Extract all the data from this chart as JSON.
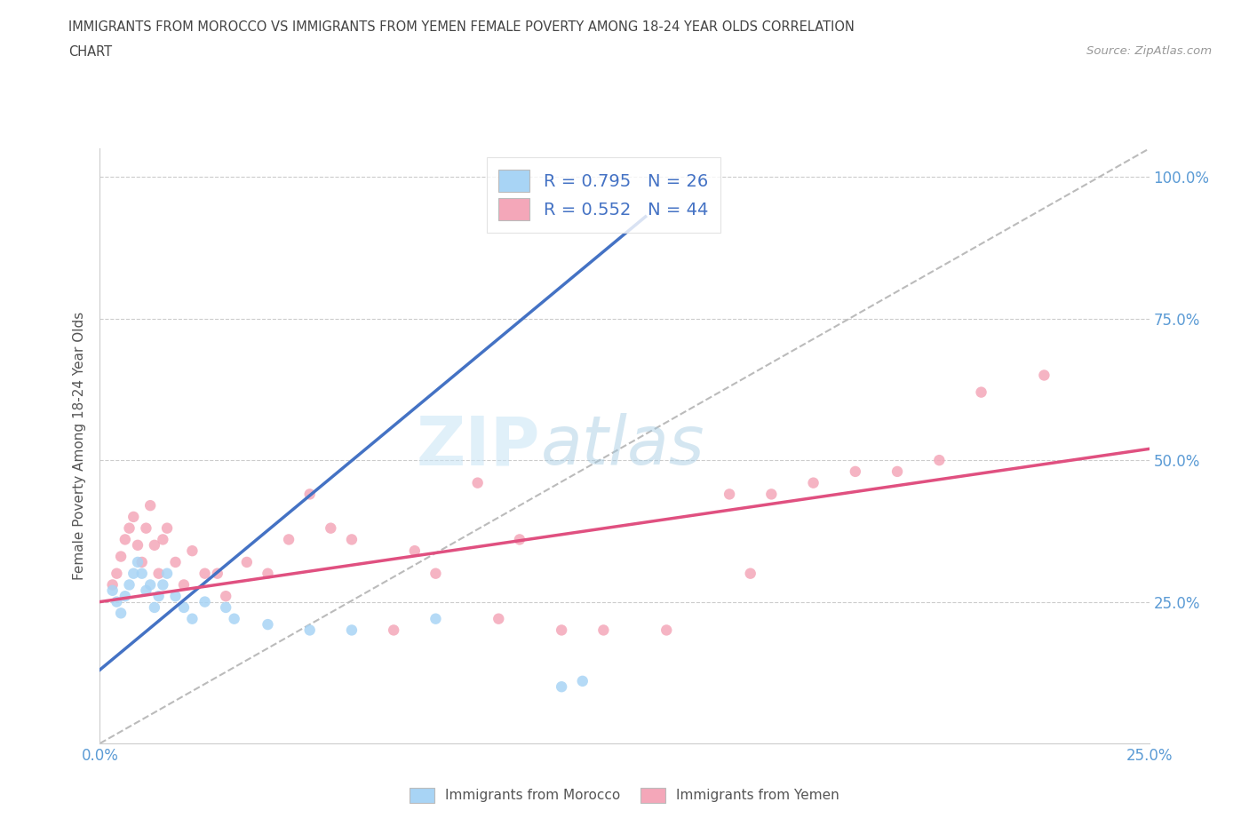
{
  "title_line1": "IMMIGRANTS FROM MOROCCO VS IMMIGRANTS FROM YEMEN FEMALE POVERTY AMONG 18-24 YEAR OLDS CORRELATION",
  "title_line2": "CHART",
  "source": "Source: ZipAtlas.com",
  "ylabel": "Female Poverty Among 18-24 Year Olds",
  "xlim": [
    0.0,
    0.25
  ],
  "ylim": [
    0.0,
    1.05
  ],
  "r_morocco": 0.795,
  "n_morocco": 26,
  "r_yemen": 0.552,
  "n_yemen": 44,
  "morocco_color": "#A8D4F5",
  "yemen_color": "#F4A7B9",
  "morocco_line_color": "#4472C4",
  "yemen_line_color": "#E05080",
  "diag_line_color": "#BBBBBB",
  "background_color": "#FFFFFF",
  "morocco_scatter_x": [
    0.003,
    0.004,
    0.005,
    0.006,
    0.007,
    0.008,
    0.009,
    0.01,
    0.011,
    0.012,
    0.013,
    0.014,
    0.015,
    0.016,
    0.018,
    0.02,
    0.022,
    0.025,
    0.03,
    0.032,
    0.04,
    0.05,
    0.06,
    0.08,
    0.11,
    0.115
  ],
  "morocco_scatter_y": [
    0.27,
    0.25,
    0.23,
    0.26,
    0.28,
    0.3,
    0.32,
    0.3,
    0.27,
    0.28,
    0.24,
    0.26,
    0.28,
    0.3,
    0.26,
    0.24,
    0.22,
    0.25,
    0.24,
    0.22,
    0.21,
    0.2,
    0.2,
    0.22,
    0.1,
    0.11
  ],
  "yemen_scatter_x": [
    0.003,
    0.004,
    0.005,
    0.006,
    0.007,
    0.008,
    0.009,
    0.01,
    0.011,
    0.012,
    0.013,
    0.014,
    0.015,
    0.016,
    0.018,
    0.02,
    0.022,
    0.025,
    0.028,
    0.03,
    0.035,
    0.04,
    0.045,
    0.05,
    0.055,
    0.06,
    0.07,
    0.075,
    0.08,
    0.09,
    0.095,
    0.1,
    0.11,
    0.12,
    0.135,
    0.15,
    0.155,
    0.16,
    0.17,
    0.18,
    0.19,
    0.2,
    0.21,
    0.225
  ],
  "yemen_scatter_y": [
    0.28,
    0.3,
    0.33,
    0.36,
    0.38,
    0.4,
    0.35,
    0.32,
    0.38,
    0.42,
    0.35,
    0.3,
    0.36,
    0.38,
    0.32,
    0.28,
    0.34,
    0.3,
    0.3,
    0.26,
    0.32,
    0.3,
    0.36,
    0.44,
    0.38,
    0.36,
    0.2,
    0.34,
    0.3,
    0.46,
    0.22,
    0.36,
    0.2,
    0.2,
    0.2,
    0.44,
    0.3,
    0.44,
    0.46,
    0.48,
    0.48,
    0.5,
    0.62,
    0.65
  ],
  "morocco_line_x": [
    0.0,
    0.13
  ],
  "morocco_line_y": [
    0.13,
    0.93
  ],
  "yemen_line_x": [
    0.0,
    0.25
  ],
  "yemen_line_y": [
    0.25,
    0.52
  ],
  "diag_line_x": [
    0.0,
    0.25
  ],
  "diag_line_y": [
    0.0,
    1.05
  ],
  "ytick_positions": [
    0.25,
    0.5,
    0.75,
    1.0
  ],
  "ytick_labels": [
    "25.0%",
    "50.0%",
    "75.0%",
    "100.0%"
  ],
  "xtick_positions": [
    0.0,
    0.05,
    0.1,
    0.15,
    0.2,
    0.25
  ],
  "xtick_labels": [
    "0.0%",
    "",
    "",
    "",
    "",
    "25.0%"
  ]
}
